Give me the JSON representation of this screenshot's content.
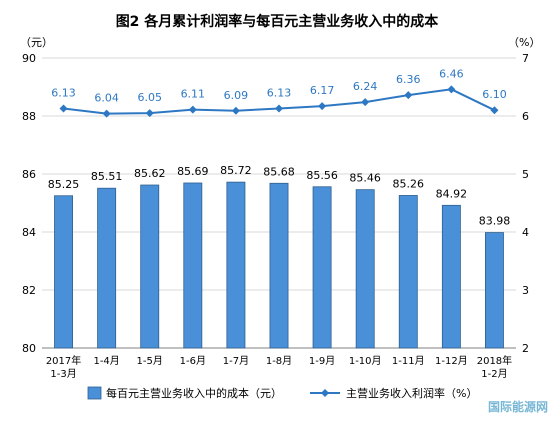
{
  "chart_data": {
    "type": "bar",
    "title": "图2 各月累计利润率与每百元主营业务收入中的成本",
    "categories": [
      [
        "2017年",
        "1-3月"
      ],
      [
        "1-4月"
      ],
      [
        "1-5月"
      ],
      [
        "1-6月"
      ],
      [
        "1-7月"
      ],
      [
        "1-8月"
      ],
      [
        "1-9月"
      ],
      [
        "1-10月"
      ],
      [
        "1-11月"
      ],
      [
        "1-12月"
      ],
      [
        "2018年",
        "1-2月"
      ]
    ],
    "left_axis": {
      "unit": "（元）",
      "ylim": [
        80,
        90
      ],
      "ticks": [
        80,
        82,
        84,
        86,
        88,
        90
      ]
    },
    "right_axis": {
      "unit": "（%）",
      "ylim": [
        2,
        7
      ],
      "ticks": [
        2,
        3,
        4,
        5,
        6,
        7
      ]
    },
    "series": [
      {
        "name": "每百元主营业务收入中的成本（元）",
        "type": "bar",
        "axis": "left",
        "color": "#4a90d9",
        "values": [
          85.25,
          85.51,
          85.62,
          85.69,
          85.72,
          85.68,
          85.56,
          85.46,
          85.26,
          84.92,
          83.98
        ]
      },
      {
        "name": "主营业务收入利润率（%）",
        "type": "line",
        "axis": "right",
        "color": "#2e78c3",
        "values": [
          6.13,
          6.04,
          6.05,
          6.11,
          6.09,
          6.13,
          6.17,
          6.24,
          6.36,
          6.46,
          6.1
        ]
      }
    ],
    "grid": true,
    "legend_position": "bottom"
  },
  "watermark": "国际能源网"
}
